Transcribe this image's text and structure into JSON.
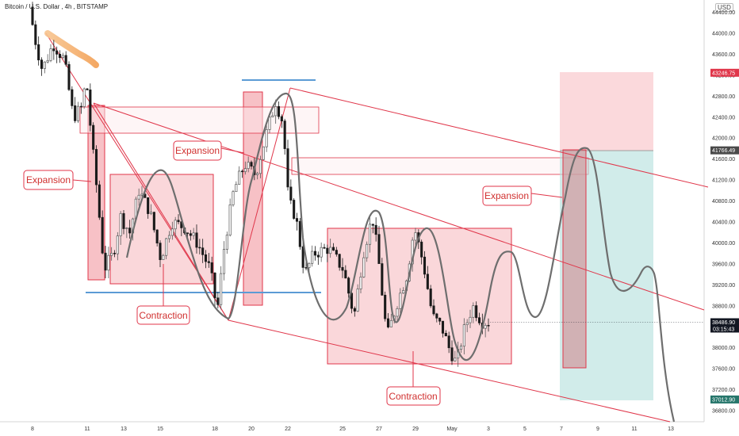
{
  "header": {
    "symbol": "Bitcoin / U.S. Dollar",
    "interval": "4h",
    "exchange": "BITSTAMP",
    "currency": "USD"
  },
  "chart_data": {
    "type": "candlestick",
    "symbol": "Bitcoin / U.S. Dollar",
    "interval": "4h",
    "exchange": "BITSTAMP",
    "ylim": [
      36500,
      44800
    ],
    "y_ticks": [
      44400,
      44000,
      43600,
      43200,
      42800,
      42400,
      42000,
      41600,
      41200,
      40800,
      40400,
      40000,
      39600,
      39200,
      38800,
      38400,
      38000,
      37600,
      37200,
      36800
    ],
    "x_ticks": [
      "8",
      "11",
      "13",
      "15",
      "18",
      "20",
      "22",
      "25",
      "27",
      "29",
      "May",
      "3",
      "5",
      "7",
      "9",
      "11",
      "13"
    ],
    "price_labels": [
      {
        "value": "43246.75",
        "price": 43246.75,
        "color": "#e0364a"
      },
      {
        "value": "41766.49",
        "price": 41766.49,
        "color": "#4a4a4a"
      },
      {
        "value": "38486.90",
        "price": 38486.9,
        "color": "#131722",
        "sub": "03:15:43"
      },
      {
        "value": "37012.90",
        "price": 37012.9,
        "color": "#26766b"
      }
    ],
    "annotations": [
      {
        "label": "Expansion"
      },
      {
        "label": "Contraction"
      },
      {
        "label": "Expansion"
      },
      {
        "label": "Contraction"
      },
      {
        "label": "Expansion"
      }
    ],
    "waypoints": [
      {
        "x": 8,
        "p": 44500
      },
      {
        "x": 8.3,
        "p": 43900
      },
      {
        "x": 8.7,
        "p": 43300
      },
      {
        "x": 9.3,
        "p": 43800
      },
      {
        "x": 9.9,
        "p": 43500
      },
      {
        "x": 10.4,
        "p": 42400
      },
      {
        "x": 10.9,
        "p": 42600
      },
      {
        "x": 11.1,
        "p": 43200
      },
      {
        "x": 11.4,
        "p": 42000
      },
      {
        "x": 11.7,
        "p": 41000
      },
      {
        "x": 12.1,
        "p": 39500
      },
      {
        "x": 12.6,
        "p": 39800
      },
      {
        "x": 13.0,
        "p": 40500
      },
      {
        "x": 13.5,
        "p": 40200
      },
      {
        "x": 14.0,
        "p": 41000
      },
      {
        "x": 14.6,
        "p": 40600
      },
      {
        "x": 15.2,
        "p": 39700
      },
      {
        "x": 15.8,
        "p": 40400
      },
      {
        "x": 16.5,
        "p": 40300
      },
      {
        "x": 17.2,
        "p": 40000
      },
      {
        "x": 17.9,
        "p": 39500
      },
      {
        "x": 18.3,
        "p": 38700
      },
      {
        "x": 18.7,
        "p": 40000
      },
      {
        "x": 19.2,
        "p": 41000
      },
      {
        "x": 19.8,
        "p": 41500
      },
      {
        "x": 20.4,
        "p": 41300
      },
      {
        "x": 21.0,
        "p": 42100
      },
      {
        "x": 21.5,
        "p": 42700
      },
      {
        "x": 21.9,
        "p": 42300
      },
      {
        "x": 22.2,
        "p": 40800
      },
      {
        "x": 22.6,
        "p": 40500
      },
      {
        "x": 23.1,
        "p": 39400
      },
      {
        "x": 23.6,
        "p": 39800
      },
      {
        "x": 24.4,
        "p": 39900
      },
      {
        "x": 25.2,
        "p": 39500
      },
      {
        "x": 25.8,
        "p": 38600
      },
      {
        "x": 26.3,
        "p": 39800
      },
      {
        "x": 26.8,
        "p": 40500
      },
      {
        "x": 27.1,
        "p": 39800
      },
      {
        "x": 27.6,
        "p": 38200
      },
      {
        "x": 28.2,
        "p": 38900
      },
      {
        "x": 28.7,
        "p": 39400
      },
      {
        "x": 29.1,
        "p": 40300
      },
      {
        "x": 29.6,
        "p": 39600
      },
      {
        "x": 30.1,
        "p": 38600
      },
      {
        "x": 30.6,
        "p": 38400
      },
      {
        "x": 31.0,
        "p": 38000
      },
      {
        "x": 31.4,
        "p": 37700
      },
      {
        "x": 31.8,
        "p": 38300
      },
      {
        "x": 32.3,
        "p": 38800
      },
      {
        "x": 32.8,
        "p": 38500
      },
      {
        "x": 33.1,
        "p": 38490
      }
    ]
  }
}
